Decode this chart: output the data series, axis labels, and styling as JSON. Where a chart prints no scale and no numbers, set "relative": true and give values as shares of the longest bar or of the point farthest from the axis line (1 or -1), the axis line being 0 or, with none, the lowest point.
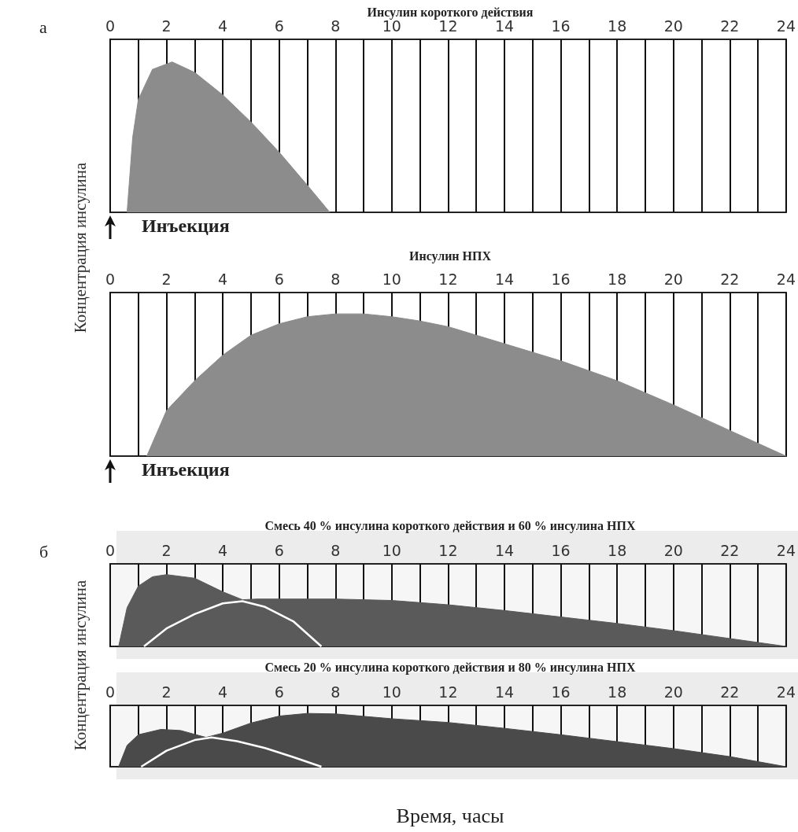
{
  "chart_data": [
    {
      "type": "area",
      "title": "Инсулин короткого действия",
      "ylabel": "Концентрация инсулина",
      "relative": true,
      "grid": "x",
      "marker": "none",
      "line_style": "solid",
      "xlim": [
        0,
        24
      ],
      "xticks": [
        0,
        {
          "value": 1,
          "label": null
        },
        2,
        {
          "value": 3,
          "label": null
        },
        4,
        {
          "value": 5,
          "label": null
        },
        6,
        {
          "value": 7,
          "label": null
        },
        8,
        {
          "value": 9,
          "label": null
        },
        10,
        {
          "value": 11,
          "label": null
        },
        12,
        {
          "value": 13,
          "label": null
        },
        14,
        {
          "value": 15,
          "label": null
        },
        16,
        {
          "value": 17,
          "label": null
        },
        18,
        {
          "value": 19,
          "label": null
        },
        20,
        {
          "value": 21,
          "label": null
        },
        22,
        {
          "value": 23,
          "label": null
        },
        24
      ],
      "annotations": [
        "а",
        "Инъекция"
      ],
      "series": [
        {
          "type": "area",
          "color": "#8c8c8c",
          "x": [
            0.6,
            0.8,
            1,
            1.5,
            2.2,
            3,
            4,
            5,
            6,
            7,
            7.8
          ],
          "values": [
            0,
            0.5,
            0.75,
            0.95,
            1,
            0.93,
            0.78,
            0.6,
            0.4,
            0.18,
            0
          ]
        }
      ]
    },
    {
      "type": "area",
      "title": "Инсулин НПХ",
      "relative": true,
      "grid": "x",
      "marker": "none",
      "line_style": "solid",
      "xlim": [
        0,
        24
      ],
      "xticks": [
        0,
        {
          "value": 1,
          "label": null
        },
        2,
        {
          "value": 3,
          "label": null
        },
        4,
        {
          "value": 5,
          "label": null
        },
        6,
        {
          "value": 7,
          "label": null
        },
        8,
        {
          "value": 9,
          "label": null
        },
        10,
        {
          "value": 11,
          "label": null
        },
        12,
        {
          "value": 13,
          "label": null
        },
        14,
        {
          "value": 15,
          "label": null
        },
        16,
        {
          "value": 17,
          "label": null
        },
        18,
        {
          "value": 19,
          "label": null
        },
        20,
        {
          "value": 21,
          "label": null
        },
        22,
        {
          "value": 23,
          "label": null
        },
        24
      ],
      "annotations": [
        "Инъекция"
      ],
      "series": [
        {
          "type": "area",
          "color": "#8c8c8c",
          "x": [
            1.3,
            2,
            3,
            4,
            5,
            6,
            7,
            8,
            9,
            10,
            11,
            12,
            14,
            16,
            18,
            20,
            22,
            24
          ],
          "values": [
            0,
            0.32,
            0.53,
            0.71,
            0.85,
            0.93,
            0.98,
            1,
            1,
            0.98,
            0.95,
            0.91,
            0.79,
            0.67,
            0.53,
            0.36,
            0.18,
            0
          ]
        }
      ]
    },
    {
      "type": "area",
      "title": "Смесь 40 % инсулина короткого действия и 60 % инсулина НПХ",
      "ylabel": "Концентрация инсулина",
      "relative": true,
      "grid": "x",
      "marker": "none",
      "line_style": "solid",
      "xlim": [
        0,
        24
      ],
      "xticks": [
        0,
        {
          "value": 1,
          "label": null
        },
        2,
        {
          "value": 3,
          "label": null
        },
        4,
        {
          "value": 5,
          "label": null
        },
        6,
        {
          "value": 7,
          "label": null
        },
        8,
        {
          "value": 9,
          "label": null
        },
        10,
        {
          "value": 11,
          "label": null
        },
        12,
        {
          "value": 13,
          "label": null
        },
        14,
        {
          "value": 15,
          "label": null
        },
        16,
        {
          "value": 17,
          "label": null
        },
        18,
        {
          "value": 19,
          "label": null
        },
        20,
        {
          "value": 21,
          "label": null
        },
        22,
        {
          "value": 23,
          "label": null
        },
        24
      ],
      "annotations": [
        "б"
      ],
      "series": [
        {
          "type": "area",
          "color": "#5a5a5a",
          "x": [
            0.3,
            0.6,
            1,
            1.5,
            2,
            3,
            4,
            4.7,
            5.2,
            6,
            8,
            10,
            12,
            14,
            16,
            18,
            20,
            22,
            24
          ],
          "values": [
            0,
            0.54,
            0.84,
            0.97,
            1,
            0.95,
            0.76,
            0.65,
            0.66,
            0.66,
            0.66,
            0.64,
            0.58,
            0.5,
            0.41,
            0.32,
            0.22,
            0.11,
            0
          ]
        },
        {
          "type": "line",
          "color": "#ffffff",
          "x": [
            1.2,
            2,
            3,
            4,
            4.7,
            5.5,
            6.5,
            7.5
          ],
          "values": [
            0,
            0.25,
            0.45,
            0.6,
            0.63,
            0.55,
            0.35,
            0
          ]
        }
      ]
    },
    {
      "type": "area",
      "title": "Смесь 20 % инсулина короткого действия и 80 % инсулина НПХ",
      "xlabel": "Время, часы",
      "relative": true,
      "grid": "x",
      "marker": "none",
      "line_style": "solid",
      "xlim": [
        0,
        24
      ],
      "xticks": [
        0,
        {
          "value": 1,
          "label": null
        },
        2,
        {
          "value": 3,
          "label": null
        },
        4,
        {
          "value": 5,
          "label": null
        },
        6,
        {
          "value": 7,
          "label": null
        },
        8,
        {
          "value": 9,
          "label": null
        },
        10,
        {
          "value": 11,
          "label": null
        },
        12,
        {
          "value": 13,
          "label": null
        },
        14,
        {
          "value": 15,
          "label": null
        },
        16,
        {
          "value": 17,
          "label": null
        },
        18,
        {
          "value": 19,
          "label": null
        },
        20,
        {
          "value": 21,
          "label": null
        },
        22,
        {
          "value": 23,
          "label": null
        },
        24
      ],
      "series": [
        {
          "type": "area",
          "color": "#4a4a4a",
          "x": [
            0.3,
            0.6,
            1,
            1.8,
            2.5,
            3.4,
            4,
            5,
            6,
            7,
            8,
            10,
            12,
            14,
            16,
            18,
            20,
            22,
            24
          ],
          "values": [
            0,
            0.4,
            0.6,
            0.7,
            0.68,
            0.55,
            0.63,
            0.82,
            0.95,
            1,
            0.99,
            0.9,
            0.83,
            0.72,
            0.6,
            0.47,
            0.34,
            0.19,
            0
          ]
        },
        {
          "type": "line",
          "color": "#ffffff",
          "x": [
            1.1,
            2,
            3,
            3.6,
            4.5,
            5.5,
            6.5,
            7.5
          ],
          "values": [
            0,
            0.3,
            0.5,
            0.55,
            0.48,
            0.35,
            0.18,
            0
          ]
        }
      ]
    }
  ]
}
